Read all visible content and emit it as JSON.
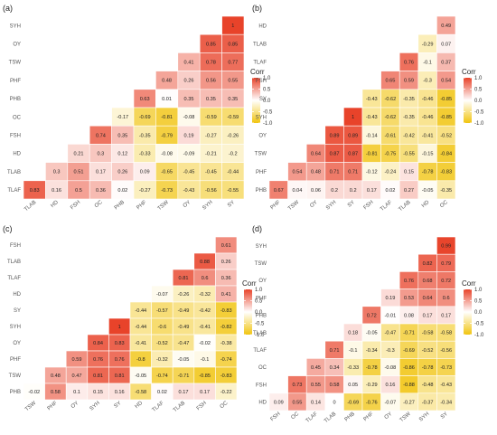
{
  "legend": {
    "title": "Corr",
    "ticks": [
      {
        "value": 1.0,
        "label": "1.0"
      },
      {
        "value": 0.5,
        "label": "0.5"
      },
      {
        "value": 0.0,
        "label": "0.0"
      },
      {
        "value": -0.5,
        "label": "-0.5"
      },
      {
        "value": -1.0,
        "label": "-1.0"
      }
    ],
    "colors": {
      "high": "#e8432a",
      "mid": "#ffffff",
      "low": "#f1c40f"
    }
  },
  "chart_data": [
    {
      "type": "heatmap",
      "panel": "(a)",
      "x_labels": [
        "TLAB",
        "HD",
        "FSH",
        "OC",
        "PHB",
        "PHF",
        "TSW",
        "OY",
        "SYH",
        "SY"
      ],
      "y_labels": [
        "SYH",
        "OY",
        "TSW",
        "PHF",
        "PHB",
        "OC",
        "FSH",
        "HD",
        "TLAB",
        "TLAF"
      ],
      "values": [
        [
          null,
          null,
          null,
          null,
          null,
          null,
          null,
          null,
          null,
          1
        ],
        [
          null,
          null,
          null,
          null,
          null,
          null,
          null,
          null,
          0.85,
          0.85
        ],
        [
          null,
          null,
          null,
          null,
          null,
          null,
          null,
          0.41,
          0.78,
          0.77
        ],
        [
          null,
          null,
          null,
          null,
          null,
          null,
          0.48,
          0.26,
          0.56,
          0.55
        ],
        [
          null,
          null,
          null,
          null,
          null,
          0.63,
          0.01,
          0.35,
          0.35,
          0.35
        ],
        [
          null,
          null,
          null,
          null,
          -0.17,
          -0.69,
          -0.81,
          -0.08,
          -0.59,
          -0.59
        ],
        [
          null,
          null,
          null,
          0.74,
          0.35,
          -0.35,
          -0.79,
          0.19,
          -0.27,
          -0.26
        ],
        [
          null,
          null,
          0.21,
          0.3,
          0.12,
          -0.33,
          -0.08,
          -0.09,
          -0.21,
          -0.2
        ],
        [
          null,
          0.3,
          0.51,
          0.17,
          0.26,
          0.09,
          -0.65,
          -0.45,
          -0.45,
          -0.44
        ],
        [
          0.83,
          0.16,
          0.5,
          0.36,
          0.02,
          -0.27,
          -0.73,
          -0.43,
          -0.56,
          -0.55
        ]
      ],
      "legend_title": "Corr",
      "legend_placement": "right",
      "grid": false
    },
    {
      "type": "heatmap",
      "panel": "(b)",
      "x_labels": [
        "PHF",
        "TSW",
        "OY",
        "SYH",
        "SY",
        "FSH",
        "TLAF",
        "TLAB",
        "HD",
        "OC"
      ],
      "y_labels": [
        "HD",
        "TLAB",
        "TLAF",
        "FSH",
        "SY",
        "SYH",
        "OY",
        "TSW",
        "PHF",
        "PHB"
      ],
      "values": [
        [
          null,
          null,
          null,
          null,
          null,
          null,
          null,
          null,
          null,
          0.49
        ],
        [
          null,
          null,
          null,
          null,
          null,
          null,
          null,
          null,
          -0.29,
          0.07
        ],
        [
          null,
          null,
          null,
          null,
          null,
          null,
          null,
          0.76,
          -0.1,
          0.37
        ],
        [
          null,
          null,
          null,
          null,
          null,
          null,
          0.65,
          0.59,
          -0.3,
          0.54
        ],
        [
          null,
          null,
          null,
          null,
          null,
          -0.43,
          -0.62,
          -0.35,
          -0.46,
          -0.85
        ],
        [
          null,
          null,
          null,
          null,
          1,
          -0.43,
          -0.62,
          -0.35,
          -0.46,
          -0.85
        ],
        [
          null,
          null,
          null,
          0.89,
          0.89,
          -0.14,
          -0.61,
          -0.42,
          -0.41,
          -0.52
        ],
        [
          null,
          null,
          0.64,
          0.87,
          0.87,
          -0.81,
          -0.75,
          -0.55,
          -0.15,
          -0.84
        ],
        [
          null,
          0.54,
          0.48,
          0.71,
          0.71,
          -0.12,
          -0.24,
          0.15,
          -0.78,
          -0.83
        ],
        [
          0.67,
          0.04,
          0.06,
          0.2,
          0.2,
          0.17,
          0.02,
          0.27,
          -0.05,
          -0.35
        ]
      ],
      "legend_title": "Corr",
      "legend_placement": "right",
      "grid": false
    },
    {
      "type": "heatmap",
      "panel": "(c)",
      "x_labels": [
        "TSW",
        "PHF",
        "OY",
        "SYH",
        "SY",
        "HD",
        "TLAF",
        "TLAB",
        "FSH",
        "OC"
      ],
      "y_labels": [
        "FSH",
        "TLAB",
        "TLAF",
        "HD",
        "SY",
        "SYH",
        "OY",
        "PHF",
        "TSW",
        "PHB"
      ],
      "values": [
        [
          null,
          null,
          null,
          null,
          null,
          null,
          null,
          null,
          null,
          0.61
        ],
        [
          null,
          null,
          null,
          null,
          null,
          null,
          null,
          null,
          0.88,
          0.26
        ],
        [
          null,
          null,
          null,
          null,
          null,
          null,
          null,
          0.81,
          0.6,
          0.36
        ],
        [
          null,
          null,
          null,
          null,
          null,
          null,
          -0.07,
          -0.26,
          -0.32,
          0.41
        ],
        [
          null,
          null,
          null,
          null,
          null,
          -0.44,
          -0.57,
          -0.49,
          -0.42,
          -0.83
        ],
        [
          null,
          null,
          null,
          null,
          1,
          -0.44,
          -0.6,
          -0.49,
          -0.41,
          -0.82
        ],
        [
          null,
          null,
          null,
          0.84,
          0.83,
          -0.41,
          -0.52,
          -0.47,
          -0.02,
          -0.38
        ],
        [
          null,
          null,
          0.59,
          0.76,
          0.76,
          -0.8,
          -0.32,
          -0.05,
          -0.1,
          -0.74
        ],
        [
          null,
          0.48,
          0.47,
          0.81,
          0.81,
          -0.05,
          -0.74,
          -0.71,
          -0.85,
          -0.83
        ],
        [
          -0.02,
          0.58,
          0.1,
          0.15,
          0.16,
          -0.58,
          0.02,
          0.17,
          0.17,
          -0.22
        ]
      ],
      "legend_title": "Corr",
      "legend_placement": "right",
      "grid": false
    },
    {
      "type": "heatmap",
      "panel": "(d)",
      "x_labels": [
        "FSH",
        "OC",
        "TLAF",
        "TLAB",
        "PHB",
        "PHF",
        "OY",
        "TSW",
        "SYH",
        "SY"
      ],
      "y_labels": [
        "SYH",
        "TSW",
        "OY",
        "PHF",
        "PHB",
        "TLAB",
        "TLAF",
        "OC",
        "FSH",
        "HD"
      ],
      "values": [
        [
          null,
          null,
          null,
          null,
          null,
          null,
          null,
          null,
          null,
          0.99
        ],
        [
          null,
          null,
          null,
          null,
          null,
          null,
          null,
          null,
          0.82,
          0.79
        ],
        [
          null,
          null,
          null,
          null,
          null,
          null,
          null,
          0.76,
          0.68,
          0.72
        ],
        [
          null,
          null,
          null,
          null,
          null,
          null,
          0.19,
          0.53,
          0.64,
          0.6
        ],
        [
          null,
          null,
          null,
          null,
          null,
          0.72,
          -0.01,
          0.08,
          0.17,
          0.17
        ],
        [
          null,
          null,
          null,
          null,
          0.18,
          -0.05,
          -0.47,
          -0.71,
          -0.58,
          -0.58
        ],
        [
          null,
          null,
          null,
          0.71,
          -0.1,
          -0.34,
          -0.3,
          -0.69,
          -0.52,
          -0.56
        ],
        [
          null,
          null,
          0.45,
          0.34,
          -0.33,
          -0.78,
          -0.08,
          -0.86,
          -0.78,
          -0.73
        ],
        [
          null,
          0.73,
          0.55,
          0.58,
          0.05,
          -0.29,
          0.16,
          -0.88,
          -0.48,
          -0.43
        ],
        [
          0.09,
          0.55,
          0.14,
          0,
          -0.69,
          -0.76,
          -0.07,
          -0.27,
          -0.37,
          -0.34
        ]
      ],
      "legend_title": "Corr",
      "legend_placement": "right",
      "grid": false
    }
  ]
}
